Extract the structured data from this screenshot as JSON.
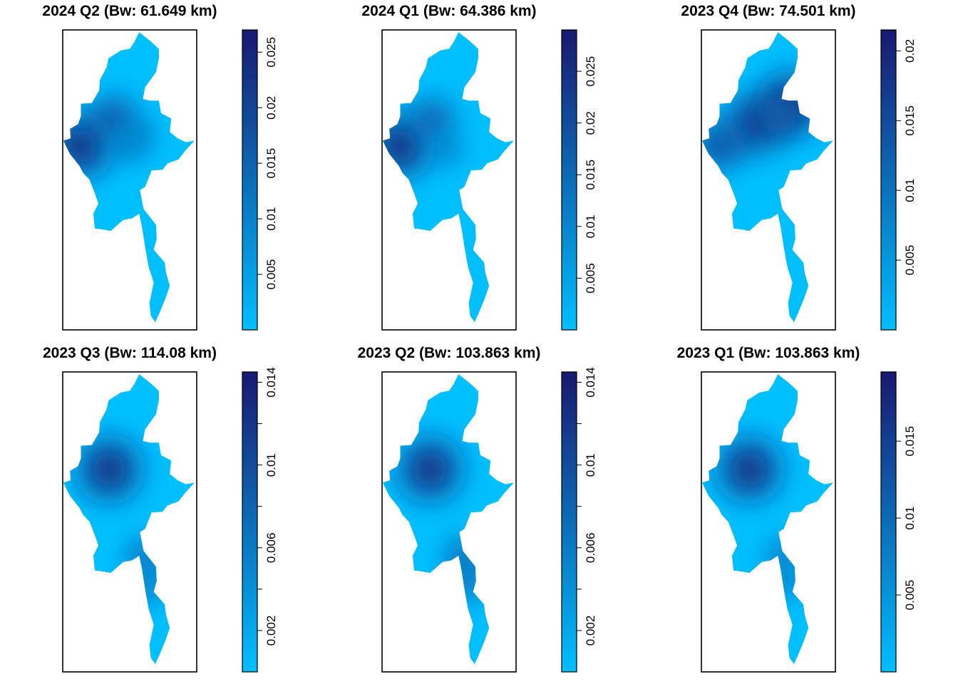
{
  "figure": {
    "color_low": "#00BFFF",
    "color_high": "#191970",
    "layout": "2 rows x 3 columns"
  },
  "chart_data": [
    {
      "type": "heatmap",
      "title": "2024 Q2 (Bw: 61.649 km)",
      "legend": {
        "ticks": [
          "0.005",
          "0.01",
          "0.015",
          "0.02",
          "0.025"
        ],
        "tick_values": [
          0.005,
          0.01,
          0.015,
          0.02,
          0.025
        ],
        "range": [
          0.0,
          0.027
        ]
      },
      "hotspots": [
        {
          "lon": 93.3,
          "lat": 21.2,
          "value": 0.027
        },
        {
          "lon": 95.6,
          "lat": 22.9,
          "value": 0.019
        },
        {
          "lon": 97.2,
          "lat": 21.8,
          "value": 0.011
        },
        {
          "lon": 96.5,
          "lat": 21.3,
          "value": 0.01
        }
      ]
    },
    {
      "type": "heatmap",
      "title": "2024 Q1 (Bw: 64.386 km)",
      "legend": {
        "ticks": [
          "0.005",
          "0.01",
          "0.015",
          "0.02",
          "0.025"
        ],
        "tick_values": [
          0.005,
          0.01,
          0.015,
          0.02,
          0.025
        ],
        "range": [
          0.0,
          0.029
        ]
      },
      "hotspots": [
        {
          "lon": 93.3,
          "lat": 21.2,
          "value": 0.029
        },
        {
          "lon": 95.6,
          "lat": 22.9,
          "value": 0.018
        },
        {
          "lon": 96.5,
          "lat": 21.0,
          "value": 0.011
        }
      ]
    },
    {
      "type": "heatmap",
      "title": "2023 Q4 (Bw: 74.501 km)",
      "legend": {
        "ticks": [
          "0.005",
          "0.01",
          "0.015",
          "0.02"
        ],
        "tick_values": [
          0.005,
          0.01,
          0.015,
          0.02
        ],
        "range": [
          0.0,
          0.0215
        ]
      },
      "hotspots": [
        {
          "lon": 98.3,
          "lat": 23.9,
          "value": 0.0215
        },
        {
          "lon": 95.8,
          "lat": 22.6,
          "value": 0.02
        },
        {
          "lon": 93.3,
          "lat": 21.2,
          "value": 0.016
        },
        {
          "lon": 97.5,
          "lat": 23.2,
          "value": 0.012
        }
      ]
    },
    {
      "type": "heatmap",
      "title": "2023 Q3 (Bw: 114.08 km)",
      "legend": {
        "ticks": [
          "0.002",
          "0.006",
          "0.01",
          "0.014"
        ],
        "tick_values": [
          0.002,
          0.006,
          0.01,
          0.014
        ],
        "range": [
          0.0,
          0.0145
        ],
        "minor_ticks": [
          0.004,
          0.008,
          0.012
        ]
      },
      "hotspots": [
        {
          "lon": 95.3,
          "lat": 22.4,
          "value": 0.0145
        },
        {
          "lon": 97.8,
          "lat": 16.8,
          "value": 0.0075
        },
        {
          "lon": 97.9,
          "lat": 15.0,
          "value": 0.0065
        }
      ]
    },
    {
      "type": "heatmap",
      "title": "2023 Q2 (Bw: 103.863 km)",
      "legend": {
        "ticks": [
          "0.002",
          "0.006",
          "0.01",
          "0.014"
        ],
        "tick_values": [
          0.002,
          0.006,
          0.01,
          0.014
        ],
        "range": [
          0.0,
          0.0145
        ],
        "minor_ticks": [
          0.004,
          0.008,
          0.012
        ]
      },
      "hotspots": [
        {
          "lon": 95.4,
          "lat": 22.4,
          "value": 0.0145
        },
        {
          "lon": 97.8,
          "lat": 16.8,
          "value": 0.008
        },
        {
          "lon": 98.0,
          "lat": 15.2,
          "value": 0.007
        }
      ]
    },
    {
      "type": "heatmap",
      "title": "2023 Q1 (Bw: 103.863 km)",
      "legend": {
        "ticks": [
          "0.005",
          "0.01",
          "0.015"
        ],
        "tick_values": [
          0.005,
          0.01,
          0.015
        ],
        "range": [
          0.0,
          0.0195
        ]
      },
      "hotspots": [
        {
          "lon": 95.4,
          "lat": 22.4,
          "value": 0.0195
        },
        {
          "lon": 97.8,
          "lat": 16.8,
          "value": 0.009
        },
        {
          "lon": 98.0,
          "lat": 15.2,
          "value": 0.0075
        }
      ]
    }
  ]
}
